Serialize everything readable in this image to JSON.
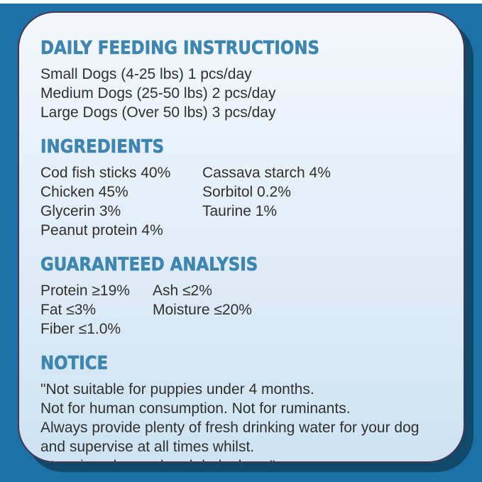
{
  "colors": {
    "background_blue": "#1d71a6",
    "top_strip_white": "#ffffff",
    "card_gradient_top": "#f3f7fc",
    "card_gradient_bottom": "#cde3f2",
    "card_border": "#473652",
    "card_shadow_navy": "#10486b",
    "heading_blue": "#3e86af",
    "body_text": "#303030"
  },
  "sections": {
    "feeding": {
      "heading": "DAILY FEEDING INSTRUCTIONS",
      "lines": [
        "Small Dogs (4-25 lbs) 1 pcs/day",
        "Medium Dogs (25-50 lbs) 2 pcs/day",
        "Large Dogs (Over 50 lbs) 3 pcs/day"
      ]
    },
    "ingredients": {
      "heading": "INGREDIENTS",
      "left": [
        "Cod fish sticks 40%",
        "Chicken 45%",
        "Glycerin 3%",
        "Peanut protein 4%"
      ],
      "right": [
        "Cassava starch 4%",
        "Sorbitol 0.2%",
        "Taurine 1%"
      ]
    },
    "analysis": {
      "heading": "GUARANTEED ANALYSIS",
      "left": [
        "Protein ≥19%",
        "Fat ≤3%",
        "Fiber ≤1.0%"
      ],
      "right": [
        "Ash ≤2%",
        "Moisture ≤20%"
      ]
    },
    "notice": {
      "heading": "NOTICE",
      "lines": [
        "\"Not suitable for puppies under 4 months.",
        "Not for human consumption. Not for ruminants.",
        "Always provide plenty of fresh drinking water for your dog",
        "and supervise at all times whilst.",
        "Store in a dry, cool and dark place.\""
      ]
    }
  }
}
